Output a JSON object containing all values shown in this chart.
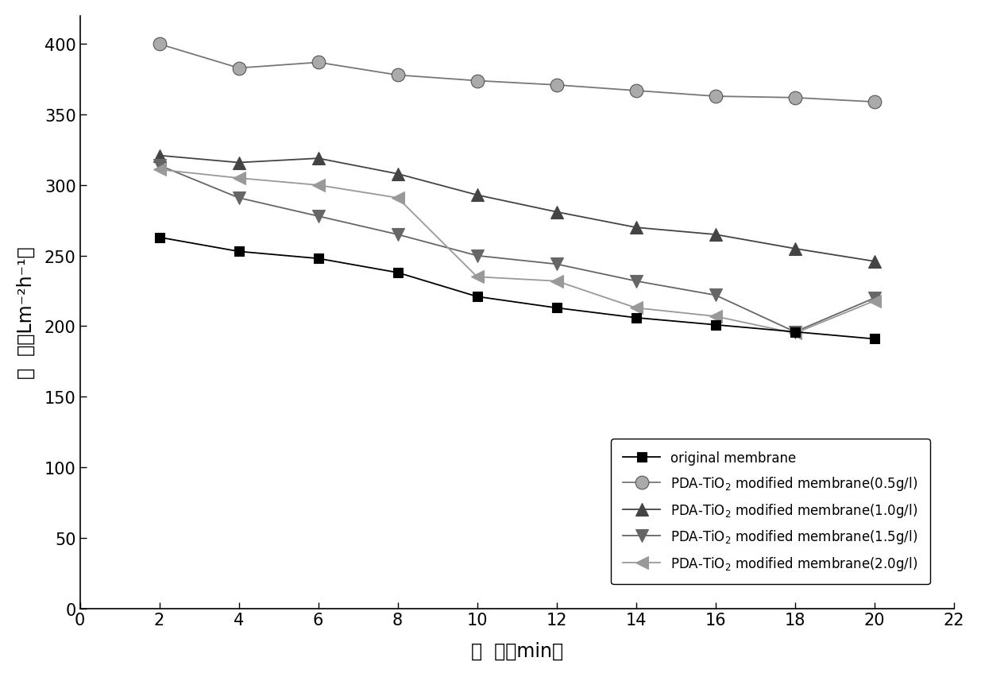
{
  "x": [
    2,
    4,
    6,
    8,
    10,
    12,
    14,
    16,
    18,
    20
  ],
  "series": {
    "original_membrane": {
      "label": "original membrane",
      "y": [
        263,
        253,
        248,
        238,
        221,
        213,
        206,
        201,
        196,
        191
      ],
      "color": "#000000",
      "marker": "s",
      "markersize": 9,
      "linewidth": 1.3
    },
    "pda_tio2_05": {
      "label": "PDA-TiO$_2$ modified membrane(0.5g/l)",
      "y": [
        400,
        383,
        387,
        378,
        374,
        371,
        367,
        363,
        362,
        359
      ],
      "color": "#777777",
      "marker": "o",
      "markersize": 12,
      "linewidth": 1.3
    },
    "pda_tio2_10": {
      "label": "PDA-TiO$_2$ modified membrane(1.0g/l)",
      "y": [
        321,
        316,
        319,
        308,
        293,
        281,
        270,
        265,
        255,
        246
      ],
      "color": "#444444",
      "marker": "^",
      "markersize": 11,
      "linewidth": 1.3
    },
    "pda_tio2_15": {
      "label": "PDA-TiO$_2$ modified membrane(1.5g/l)",
      "y": [
        314,
        291,
        278,
        265,
        250,
        244,
        232,
        222,
        196,
        220
      ],
      "color": "#666666",
      "marker": "v",
      "markersize": 11,
      "linewidth": 1.3
    },
    "pda_tio2_20": {
      "label": "PDA-TiO$_2$ modified membrane(2.0g/l)",
      "y": [
        311,
        305,
        300,
        291,
        235,
        232,
        213,
        207,
        195,
        218
      ],
      "color": "#999999",
      "marker": "<",
      "markersize": 11,
      "linewidth": 1.3
    }
  },
  "xlabel": "时  间（min）",
  "ylabel": "通  量（Lm⁻²h⁻¹）",
  "xlim": [
    0,
    22
  ],
  "ylim": [
    0,
    420
  ],
  "xticks": [
    0,
    2,
    4,
    6,
    8,
    10,
    12,
    14,
    16,
    18,
    20,
    22
  ],
  "yticks": [
    0,
    50,
    100,
    150,
    200,
    250,
    300,
    350,
    400
  ],
  "figsize": [
    12.35,
    8.53
  ],
  "dpi": 100
}
